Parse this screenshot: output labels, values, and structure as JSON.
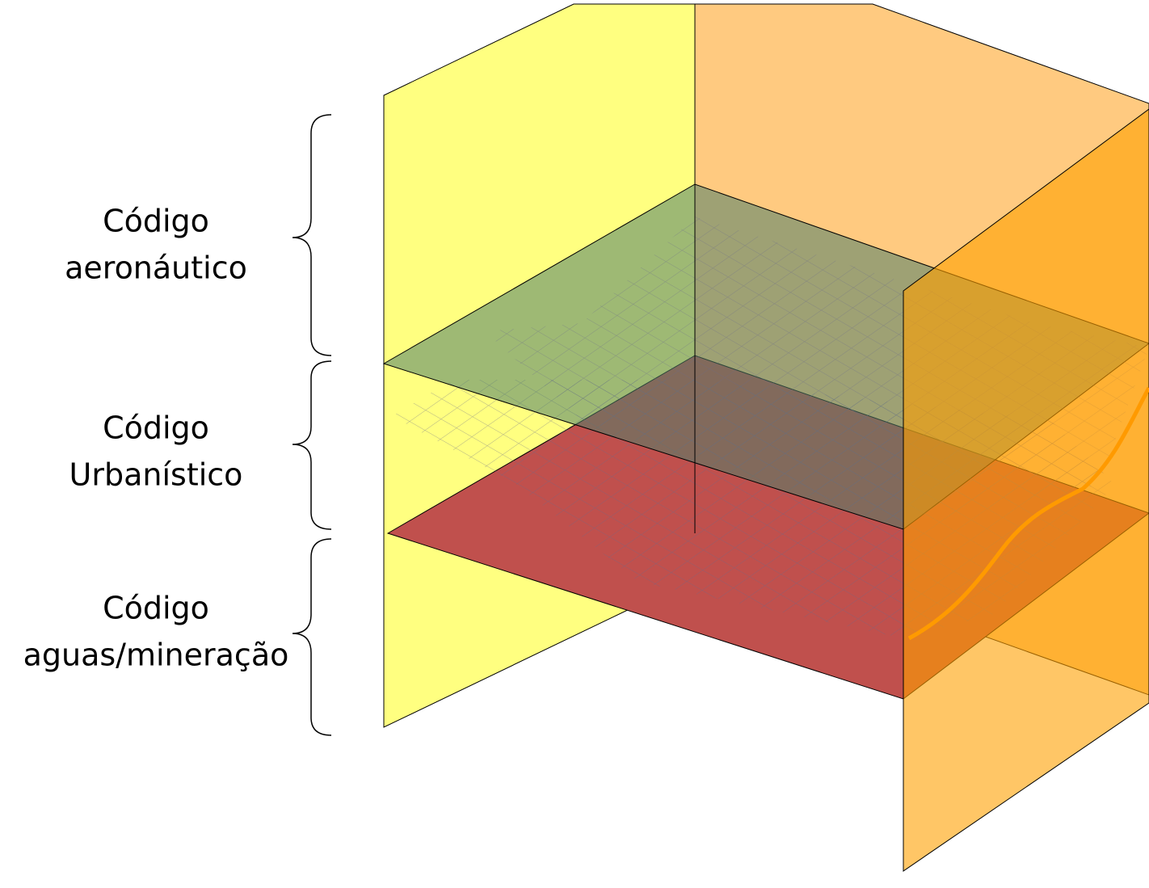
{
  "layers": [
    {
      "lines": [
        "Código",
        "aeronáutico"
      ]
    },
    {
      "lines": [
        "Código",
        "Urbanístico"
      ]
    },
    {
      "lines": [
        "Código",
        "aguas/mineração"
      ]
    }
  ]
}
